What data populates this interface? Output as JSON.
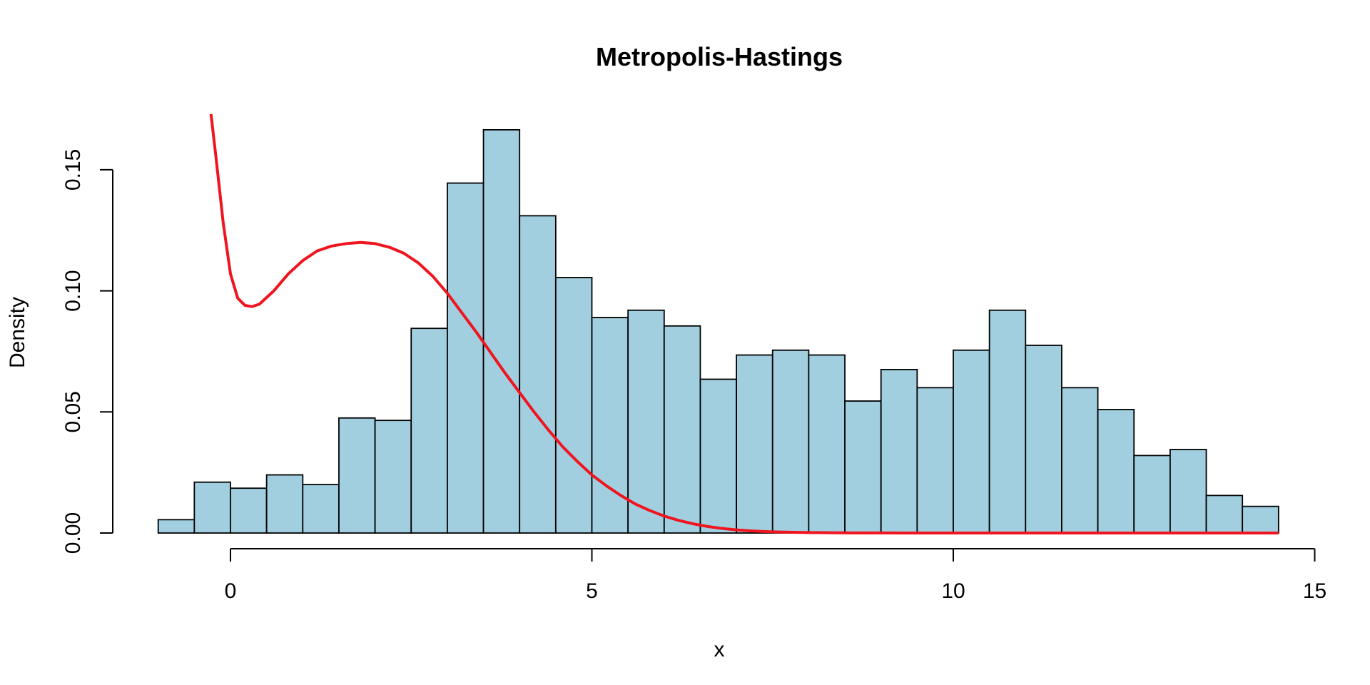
{
  "chart_data": {
    "type": "bar",
    "title": "Metropolis-Hastings",
    "xlabel": "x",
    "ylabel": "Density",
    "xlim": [
      -1,
      14.5
    ],
    "ylim": [
      0,
      0.17
    ],
    "x_ticks": [
      0,
      5,
      10,
      15
    ],
    "x_tick_labels": [
      "0",
      "5",
      "10",
      "15"
    ],
    "y_ticks": [
      0,
      0.05,
      0.1,
      0.15
    ],
    "y_tick_labels": [
      "0.00",
      "0.05",
      "0.10",
      "0.15"
    ],
    "grid": false,
    "histogram": {
      "bin_width": 0.5,
      "bins": [
        {
          "x0": -1.0,
          "value": 0.0055
        },
        {
          "x0": -0.5,
          "value": 0.021
        },
        {
          "x0": 0.0,
          "value": 0.0185
        },
        {
          "x0": 0.5,
          "value": 0.024
        },
        {
          "x0": 1.0,
          "value": 0.02
        },
        {
          "x0": 1.5,
          "value": 0.0475
        },
        {
          "x0": 2.0,
          "value": 0.0465
        },
        {
          "x0": 2.5,
          "value": 0.0845
        },
        {
          "x0": 3.0,
          "value": 0.1445
        },
        {
          "x0": 3.5,
          "value": 0.1665
        },
        {
          "x0": 4.0,
          "value": 0.131
        },
        {
          "x0": 4.5,
          "value": 0.1055
        },
        {
          "x0": 5.0,
          "value": 0.089
        },
        {
          "x0": 5.5,
          "value": 0.092
        },
        {
          "x0": 6.0,
          "value": 0.0855
        },
        {
          "x0": 6.5,
          "value": 0.0635
        },
        {
          "x0": 7.0,
          "value": 0.0735
        },
        {
          "x0": 7.5,
          "value": 0.0755
        },
        {
          "x0": 8.0,
          "value": 0.0735
        },
        {
          "x0": 8.5,
          "value": 0.0545
        },
        {
          "x0": 9.0,
          "value": 0.0675
        },
        {
          "x0": 9.5,
          "value": 0.06
        },
        {
          "x0": 10.0,
          "value": 0.0755
        },
        {
          "x0": 10.5,
          "value": 0.092
        },
        {
          "x0": 11.0,
          "value": 0.0775
        },
        {
          "x0": 11.5,
          "value": 0.06
        },
        {
          "x0": 12.0,
          "value": 0.051
        },
        {
          "x0": 12.5,
          "value": 0.032
        },
        {
          "x0": 13.0,
          "value": 0.0345
        },
        {
          "x0": 13.5,
          "value": 0.0155
        },
        {
          "x0": 14.0,
          "value": 0.011
        }
      ]
    },
    "series": [
      {
        "type": "line",
        "x": [
          -0.27,
          -0.25,
          -0.2,
          -0.1,
          0.0,
          0.1,
          0.2,
          0.3,
          0.4,
          0.6,
          0.8,
          1.0,
          1.2,
          1.4,
          1.6,
          1.8,
          2.0,
          2.2,
          2.4,
          2.6,
          2.8,
          3.0,
          3.2,
          3.4,
          3.6,
          3.8,
          4.0,
          4.2,
          4.4,
          4.6,
          4.8,
          5.0,
          5.2,
          5.4,
          5.6,
          5.8,
          6.0,
          6.2,
          6.4,
          6.6,
          6.8,
          7.0,
          7.2,
          7.4,
          7.6,
          7.8,
          8.0,
          8.3,
          8.6,
          9.0,
          9.5,
          10.0,
          11.0,
          12.0,
          13.0,
          14.0,
          14.5
        ],
        "y": [
          0.173,
          0.168,
          0.155,
          0.128,
          0.107,
          0.097,
          0.094,
          0.0935,
          0.0945,
          0.1,
          0.107,
          0.1125,
          0.1165,
          0.1185,
          0.1195,
          0.12,
          0.1195,
          0.118,
          0.1155,
          0.1115,
          0.106,
          0.099,
          0.091,
          0.083,
          0.0745,
          0.066,
          0.058,
          0.05,
          0.0425,
          0.0355,
          0.0295,
          0.024,
          0.0195,
          0.0155,
          0.012,
          0.0093,
          0.007,
          0.0052,
          0.0038,
          0.0027,
          0.0019,
          0.0013,
          0.0009,
          0.0006,
          0.0004,
          0.0003,
          0.0002,
          0.0001,
          5e-05,
          2e-05,
          1e-05,
          0.0,
          0.0,
          0.0,
          0.0,
          0.0,
          0.0
        ]
      }
    ],
    "colors": {
      "bars": "#a2cfe0",
      "bar_outline": "#000000",
      "curve": "#f0141e"
    }
  }
}
